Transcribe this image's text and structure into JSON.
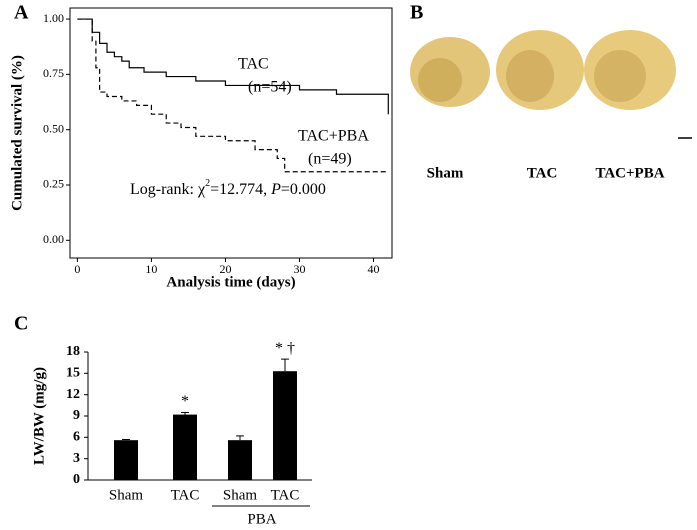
{
  "chart_data": [
    {
      "type": "step",
      "panel": "A",
      "xlabel": "Analysis time (days)",
      "ylabel": "Cumulated survival (%)",
      "xlim": [
        -1,
        42.5
      ],
      "ylim": [
        -0.08,
        1.05
      ],
      "xticks": [
        0,
        10,
        20,
        30,
        40
      ],
      "yticks": [
        {
          "value": 0,
          "label": "0.00"
        },
        {
          "value": 0.25,
          "label": "0.25"
        },
        {
          "value": 0.5,
          "label": "0.50"
        },
        {
          "value": 0.75,
          "label": "0.75"
        },
        {
          "value": 1,
          "label": "1.00"
        }
      ],
      "series": [
        {
          "label": [
            "TAC",
            "(n=54)"
          ],
          "color": "#000",
          "dash": false,
          "x": [
            0,
            2,
            3,
            4,
            5,
            6,
            7,
            9,
            12,
            16,
            20,
            30,
            35,
            42
          ],
          "values": [
            1,
            0.94,
            0.89,
            0.85,
            0.83,
            0.81,
            0.78,
            0.76,
            0.74,
            0.72,
            0.7,
            0.68,
            0.66,
            0.57
          ]
        },
        {
          "label": [
            "TAC+PBA",
            "(n=49)"
          ],
          "color": "#000",
          "dash": true,
          "x": [
            0,
            2,
            2.5,
            3,
            4,
            6,
            8,
            10,
            12,
            14,
            16,
            20,
            24,
            27,
            28,
            42
          ],
          "values": [
            1,
            0.9,
            0.78,
            0.67,
            0.65,
            0.63,
            0.61,
            0.57,
            0.53,
            0.51,
            0.47,
            0.45,
            0.41,
            0.37,
            0.31,
            0.31
          ]
        }
      ],
      "log_rank": [
        "Log-rank: χ",
        "2",
        "=12.774, ",
        "P",
        "=0.000"
      ]
    },
    {
      "type": "image",
      "panel": "B",
      "labels": [
        "Sham",
        "TAC",
        "TAC+PBA"
      ]
    },
    {
      "type": "bar",
      "panel": "C",
      "ylabel": "LW/BW (mg/g)",
      "categories": [
        "Sham",
        "TAC",
        "Sham",
        "TAC"
      ],
      "values": [
        5.6,
        9.2,
        5.6,
        15.3
      ],
      "errors": [
        0.1,
        0.3,
        0.6,
        1.7
      ],
      "annotations": [
        null,
        "*",
        null,
        "* †"
      ],
      "group_label": "PBA",
      "color": "#000",
      "ylim": [
        0,
        18
      ],
      "yticks": [
        0,
        3,
        6,
        9,
        12,
        15,
        18
      ]
    }
  ]
}
